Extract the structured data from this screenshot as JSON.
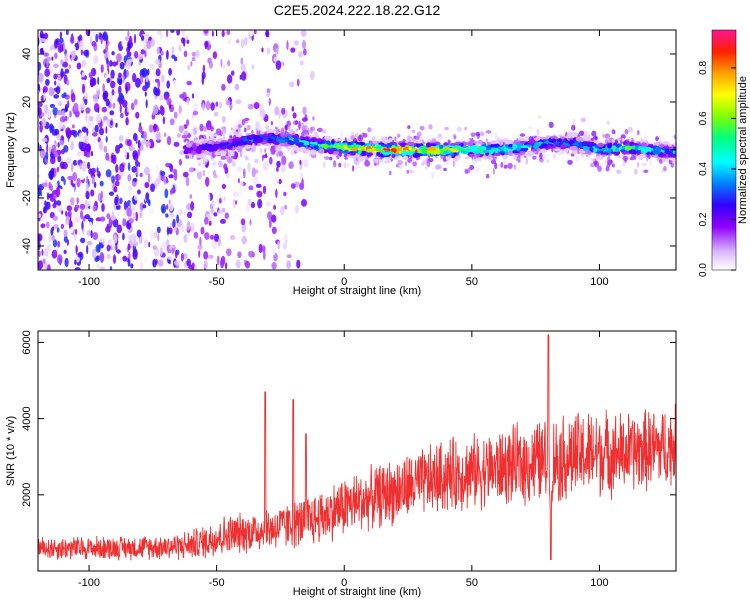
{
  "title": "C2E5.2024.222.18.22.G12",
  "chart_data": [
    {
      "type": "heatmap",
      "xlabel": "Height of straight line (km)",
      "ylabel": "Frequency (Hz)",
      "xlim": [
        -120,
        130
      ],
      "ylim": [
        -50,
        50
      ],
      "xticks": [
        -100,
        -50,
        0,
        50,
        100
      ],
      "yticks": [
        -40,
        -20,
        0,
        20,
        40
      ],
      "grid": false,
      "ridge": {
        "x": [
          -62,
          -55,
          -45,
          -38,
          -30,
          -20,
          -10,
          0,
          20,
          40,
          55,
          70,
          80,
          90,
          100,
          110,
          120,
          130
        ],
        "frequency": [
          0,
          1,
          2,
          4,
          5,
          4,
          2,
          1,
          0,
          0,
          0,
          1,
          3,
          3,
          0,
          1,
          0,
          -1
        ],
        "amplitude": [
          0.25,
          0.3,
          0.35,
          0.38,
          0.4,
          0.45,
          0.55,
          0.8,
          0.95,
          0.85,
          0.6,
          0.5,
          0.4,
          0.4,
          0.55,
          0.6,
          0.5,
          0.4
        ]
      },
      "colorbar": {
        "label": "Normalized spectral amplitude",
        "range": [
          0,
          0.95
        ],
        "ticks": [
          "0.0",
          "0.2",
          "0.4",
          "0.6",
          "0.8"
        ],
        "tick_values": [
          0,
          0.2,
          0.4,
          0.6,
          0.8
        ]
      }
    },
    {
      "type": "line",
      "xlabel": "Height of straight line (km)",
      "ylabel": "SNR (10 * v/v)",
      "xlim": [
        -120,
        130
      ],
      "ylim": [
        0,
        6300
      ],
      "xticks": [
        -100,
        -50,
        0,
        50,
        100
      ],
      "yticks": [
        2000,
        4000,
        6000
      ],
      "color": "#f03030",
      "series": [
        {
          "x": [
            -120,
            -100,
            -80,
            -65,
            -55,
            -50,
            -40,
            -30,
            -20,
            -10,
            0,
            10,
            20,
            30,
            40,
            50,
            60,
            70,
            80,
            90,
            100,
            110,
            120,
            130
          ],
          "mean": [
            600,
            600,
            620,
            650,
            750,
            900,
            1000,
            1100,
            1200,
            1400,
            1700,
            1900,
            2100,
            2300,
            2500,
            2600,
            2700,
            2800,
            2900,
            3000,
            3100,
            3100,
            3200,
            3300
          ],
          "spread": [
            350,
            350,
            350,
            400,
            500,
            600,
            600,
            650,
            700,
            800,
            900,
            900,
            1000,
            1000,
            1100,
            1100,
            1100,
            1200,
            1300,
            1300,
            1300,
            1200,
            1200,
            1200
          ]
        }
      ],
      "spikes": [
        {
          "x": -31,
          "y": 4700
        },
        {
          "x": -20,
          "y": 4500
        },
        {
          "x": -15,
          "y": 3600
        },
        {
          "x": 80,
          "y": 6200
        },
        {
          "x": 81,
          "y": 300
        }
      ]
    }
  ]
}
